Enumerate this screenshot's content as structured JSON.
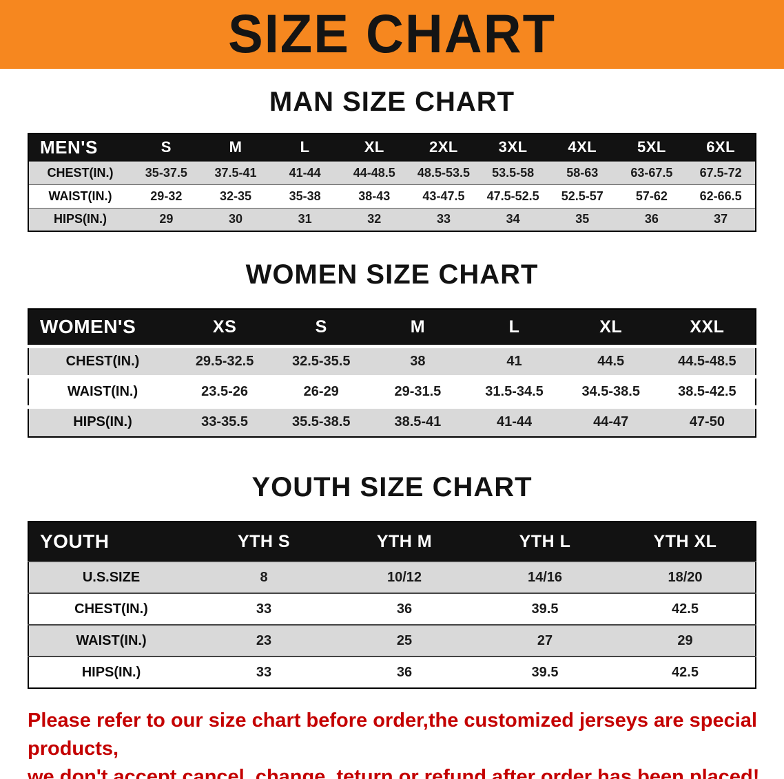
{
  "banner": {
    "title": "SIZE CHART"
  },
  "sections": [
    {
      "id": "mens",
      "heading": "MAN SIZE CHART",
      "table": {
        "header": [
          "MEN'S",
          "S",
          "M",
          "L",
          "XL",
          "2XL",
          "3XL",
          "4XL",
          "5XL",
          "6XL"
        ],
        "rows": [
          [
            "CHEST(IN.)",
            "35-37.5",
            "37.5-41",
            "41-44",
            "44-48.5",
            "48.5-53.5",
            "53.5-58",
            "58-63",
            "63-67.5",
            "67.5-72"
          ],
          [
            "WAIST(IN.)",
            "29-32",
            "32-35",
            "35-38",
            "38-43",
            "43-47.5",
            "47.5-52.5",
            "52.5-57",
            "57-62",
            "62-66.5"
          ],
          [
            "HIPS(IN.)",
            "29",
            "30",
            "31",
            "32",
            "33",
            "34",
            "35",
            "36",
            "37"
          ]
        ]
      }
    },
    {
      "id": "womens",
      "heading": "WOMEN SIZE CHART",
      "table": {
        "header": [
          "WOMEN'S",
          "XS",
          "S",
          "M",
          "L",
          "XL",
          "XXL"
        ],
        "rows": [
          [
            "CHEST(IN.)",
            "29.5-32.5",
            "32.5-35.5",
            "38",
            "41",
            "44.5",
            "44.5-48.5"
          ],
          [
            "WAIST(IN.)",
            "23.5-26",
            "26-29",
            "29-31.5",
            "31.5-34.5",
            "34.5-38.5",
            "38.5-42.5"
          ],
          [
            "HIPS(IN.)",
            "33-35.5",
            "35.5-38.5",
            "38.5-41",
            "41-44",
            "44-47",
            "47-50"
          ]
        ]
      }
    },
    {
      "id": "youth",
      "heading": "YOUTH SIZE CHART",
      "table": {
        "header": [
          "YOUTH",
          "YTH S",
          "YTH M",
          "YTH L",
          "YTH XL"
        ],
        "rows": [
          [
            "U.S.SIZE",
            "8",
            "10/12",
            "14/16",
            "18/20"
          ],
          [
            "CHEST(IN.)",
            "33",
            "36",
            "39.5",
            "42.5"
          ],
          [
            "WAIST(IN.)",
            "23",
            "25",
            "27",
            "29"
          ],
          [
            "HIPS(IN.)",
            "33",
            "36",
            "39.5",
            "42.5"
          ]
        ]
      }
    }
  ],
  "note": {
    "line1": "Please refer to our size chart before order,the customized jerseys are special products,",
    "line2": "we don't accept cancel, change, teturn or refund after order has been placed!"
  },
  "colors": {
    "banner_bg": "#f6871f",
    "table_header_bg": "#121212",
    "row_stripe": "#d9d9d9",
    "note_red": "#c40000"
  }
}
